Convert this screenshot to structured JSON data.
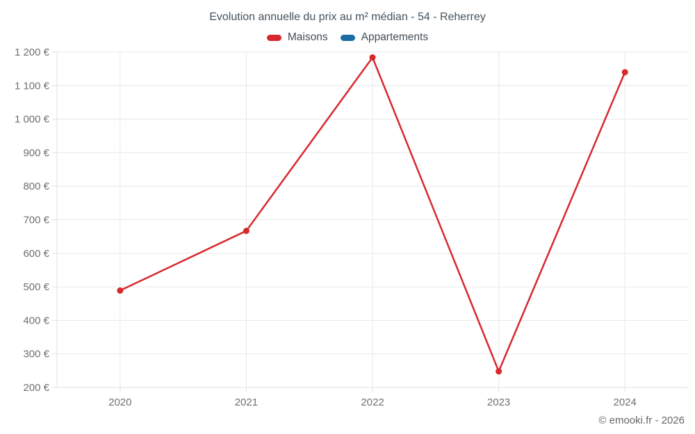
{
  "header": {
    "title": "Evolution annuelle du prix au m² médian - 54 - Reherrey"
  },
  "footer": {
    "text": "© emooki.fr - 2026"
  },
  "colors": {
    "maisons_red": "#d7282d",
    "appartements_blue": "#1a6ca3",
    "grid": "#e8e8e8",
    "axis": "#e0e0e0",
    "title_text": "#44525c",
    "tick_text": "#6f6f6f",
    "footer_text": "#666666"
  },
  "chart_data": {
    "type": "line",
    "title": "Evolution annuelle du prix au m² médian - 54 - Reherrey",
    "categories": [
      "2020",
      "2021",
      "2022",
      "2023",
      "2024"
    ],
    "series": [
      {
        "name": "Maisons",
        "color": "#d7282d",
        "values": [
          489,
          667,
          1184,
          248,
          1140
        ]
      },
      {
        "name": "Appartements",
        "color": "#1a6ca3",
        "values": []
      }
    ],
    "xlabel": "",
    "ylabel": "",
    "ylim": [
      200,
      1200
    ],
    "ytick_step": 100,
    "ytick_labels": [
      "200 €",
      "300 €",
      "400 €",
      "500 €",
      "600 €",
      "700 €",
      "800 €",
      "900 €",
      "1 000 €",
      "1 100 €",
      "1 200 €"
    ],
    "grid": true,
    "legend_position": "top",
    "legend_entries": [
      "Maisons",
      "Appartements"
    ]
  }
}
